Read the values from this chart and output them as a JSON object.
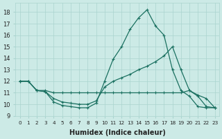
{
  "xlabel": "Humidex (Indice chaleur)",
  "background_color": "#cceae6",
  "grid_color": "#aad4cf",
  "line_color": "#1a7060",
  "xlim": [
    -0.5,
    23.5
  ],
  "ylim": [
    9.0,
    18.8
  ],
  "yticks": [
    9,
    10,
    11,
    12,
    13,
    14,
    15,
    16,
    17,
    18
  ],
  "xticks": [
    0,
    1,
    2,
    3,
    4,
    5,
    6,
    7,
    8,
    9,
    10,
    11,
    12,
    13,
    14,
    15,
    16,
    17,
    18,
    19,
    20,
    21,
    22,
    23
  ],
  "curve_main_x": [
    0,
    1,
    2,
    3,
    4,
    5,
    6,
    7,
    8,
    9,
    10,
    11,
    12,
    13,
    14,
    15,
    16,
    17,
    18,
    19,
    20,
    21,
    22,
    23
  ],
  "curve_main_y": [
    12.0,
    12.0,
    11.2,
    11.1,
    10.2,
    9.9,
    9.8,
    9.7,
    9.7,
    10.1,
    12.0,
    13.9,
    15.0,
    16.5,
    17.5,
    18.2,
    16.8,
    16.0,
    13.0,
    11.2,
    10.7,
    9.8,
    9.7,
    9.7
  ],
  "curve_slow_x": [
    0,
    1,
    2,
    3,
    4,
    5,
    6,
    7,
    8,
    9,
    10,
    11,
    12,
    13,
    14,
    15,
    16,
    17,
    18,
    19,
    20,
    21,
    22,
    23
  ],
  "curve_slow_y": [
    12.0,
    12.0,
    11.2,
    11.1,
    10.5,
    10.2,
    10.1,
    10.0,
    10.0,
    10.3,
    11.5,
    12.0,
    12.3,
    12.6,
    13.0,
    13.3,
    13.7,
    14.2,
    15.0,
    13.0,
    11.2,
    10.7,
    9.8,
    9.7
  ],
  "curve_flat_x": [
    0,
    1,
    2,
    3,
    4,
    5,
    6,
    7,
    8,
    9,
    10,
    11,
    12,
    13,
    14,
    15,
    16,
    17,
    18,
    19,
    20,
    21,
    22,
    23
  ],
  "curve_flat_y": [
    12.0,
    12.0,
    11.2,
    11.2,
    11.0,
    11.0,
    11.0,
    11.0,
    11.0,
    11.0,
    11.0,
    11.0,
    11.0,
    11.0,
    11.0,
    11.0,
    11.0,
    11.0,
    11.0,
    11.0,
    11.2,
    10.8,
    10.5,
    9.7
  ]
}
